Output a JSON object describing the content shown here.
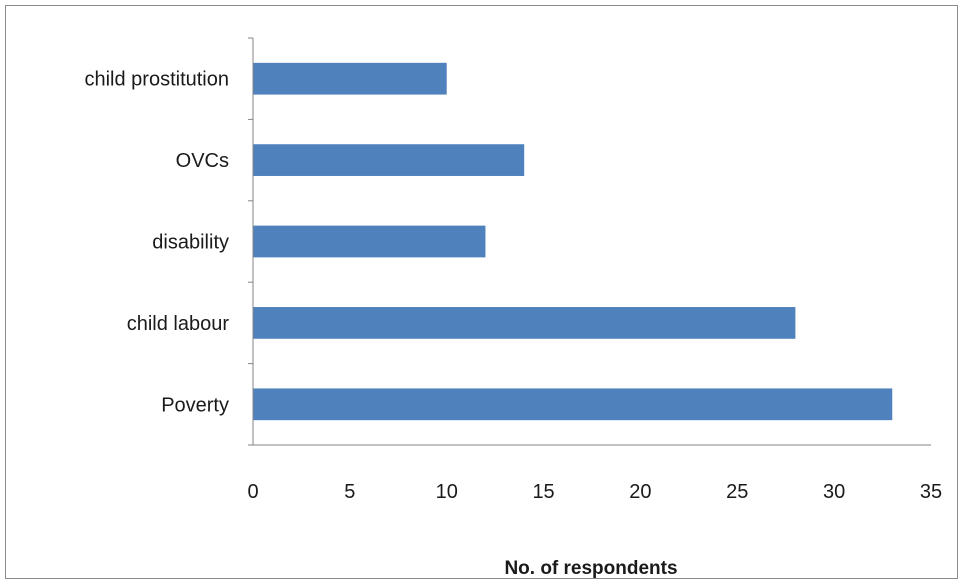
{
  "chart_data": {
    "type": "bar",
    "orientation": "horizontal",
    "categories": [
      "Poverty",
      "child labour",
      "disability",
      "OVCs",
      "child prostitution"
    ],
    "values": [
      33,
      28,
      12,
      14,
      10
    ],
    "xlabel": "No. of respondents",
    "ylabel": "",
    "xlim": [
      0,
      35
    ],
    "xticks": [
      0,
      5,
      10,
      15,
      20,
      25,
      30,
      35
    ],
    "bar_color": "#4f81bd",
    "grid": false,
    "legend": "none"
  }
}
